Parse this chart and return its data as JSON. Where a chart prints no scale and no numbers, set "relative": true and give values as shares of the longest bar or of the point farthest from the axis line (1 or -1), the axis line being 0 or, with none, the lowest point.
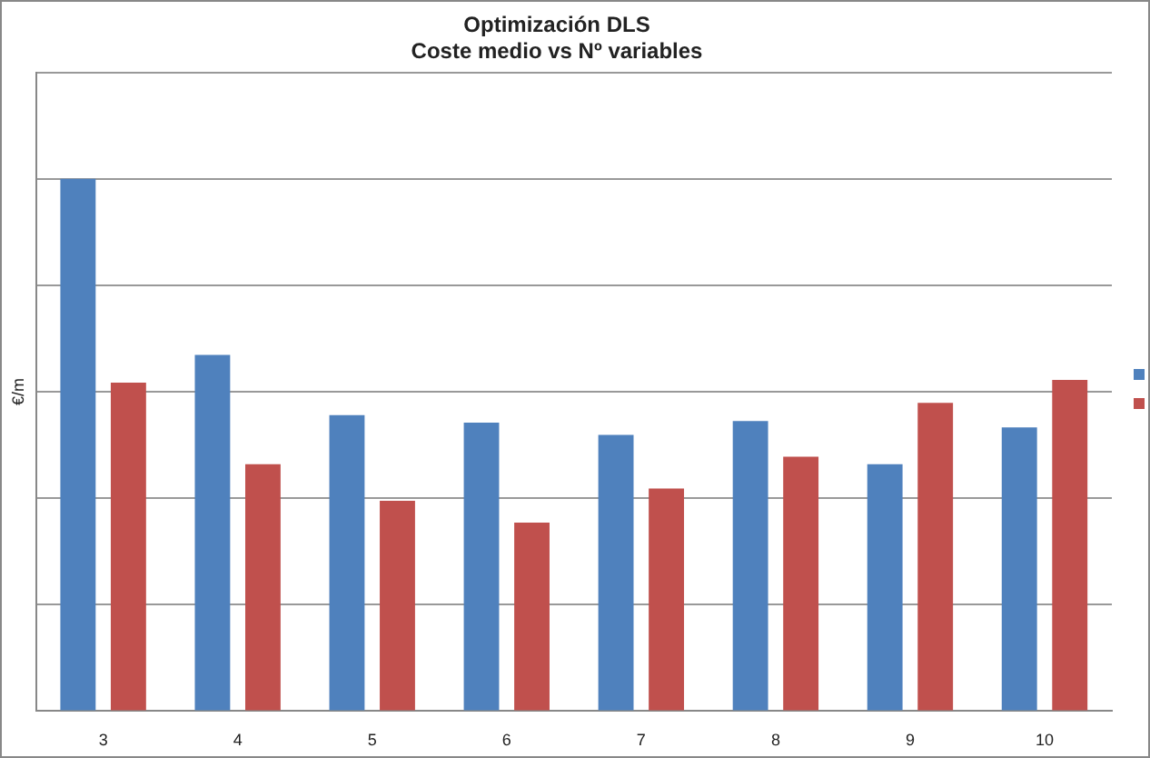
{
  "chart_data": {
    "type": "bar",
    "title": "Optimización DLS",
    "subtitle": "Coste medio vs Nº variables",
    "ylabel": "€/m",
    "relative": true,
    "grid": "y",
    "categories": [
      "3",
      "4",
      "5",
      "6",
      "7",
      "8",
      "9",
      "10"
    ],
    "series": [
      {
        "color": "#4f81bd",
        "values": [
          1,
          0.669,
          0.556,
          0.542,
          0.519,
          0.545,
          0.464,
          0.533
        ]
      },
      {
        "color": "#c0504d",
        "values": [
          0.617,
          0.464,
          0.395,
          0.354,
          0.418,
          0.478,
          0.579,
          0.622
        ]
      }
    ]
  }
}
